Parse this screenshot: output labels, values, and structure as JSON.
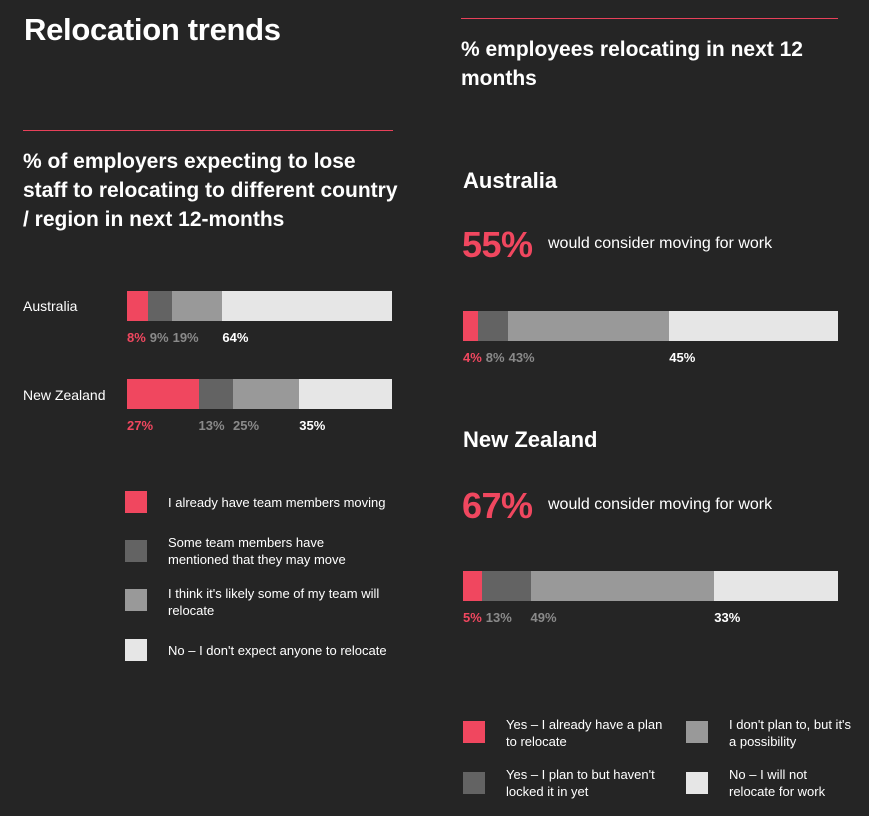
{
  "page": {
    "title": "Relocation trends"
  },
  "colors": {
    "background": "#252525",
    "accent": "#f0475f",
    "rule": "#e8415a",
    "dark_grey": "#636363",
    "mid_grey": "#999999",
    "light_grey": "#e6e6e6"
  },
  "chart_data": [
    {
      "type": "bar",
      "orientation": "horizontal-stacked",
      "title": "% of employers expecting to lose staff to relocating to different country / region in next 12-months",
      "categories": [
        "Australia",
        "New Zealand"
      ],
      "series": [
        {
          "name": "I already have team members moving",
          "color": "#f0475f",
          "values": [
            8,
            27
          ],
          "labels": [
            "8%",
            "27%"
          ]
        },
        {
          "name": "Some team members have mentioned that they may move",
          "color": "#636363",
          "values": [
            9,
            13
          ],
          "labels": [
            "9%",
            "13%"
          ]
        },
        {
          "name": "I think it's likely some of my team will relocate",
          "color": "#999999",
          "values": [
            19,
            25
          ],
          "labels": [
            "19%",
            "25%"
          ]
        },
        {
          "name": "No – I don't expect anyone to relocate",
          "color": "#e6e6e6",
          "values": [
            64,
            35
          ],
          "labels": [
            "64%",
            "35%"
          ]
        }
      ],
      "legend_position": "bottom"
    },
    {
      "type": "bar",
      "orientation": "horizontal-stacked",
      "title": "% employees relocating in next 12 months",
      "groups": [
        {
          "name": "Australia",
          "headline": "55%",
          "headline_text": "would consider moving for work"
        },
        {
          "name": "New Zealand",
          "headline": "67%",
          "headline_text": "would consider moving for work"
        }
      ],
      "categories": [
        "Australia",
        "New Zealand"
      ],
      "series": [
        {
          "name": "Yes – I already have a plan to relocate",
          "color": "#f0475f",
          "values": [
            4,
            5
          ],
          "labels": [
            "4%",
            "5%"
          ]
        },
        {
          "name": "Yes – I plan to but haven't locked it in yet",
          "color": "#636363",
          "values": [
            8,
            13
          ],
          "labels": [
            "8%",
            "13%"
          ]
        },
        {
          "name": "I don't plan to, but it's a possibility",
          "color": "#999999",
          "values": [
            43,
            49
          ],
          "labels": [
            "43%",
            "49%"
          ]
        },
        {
          "name": "No – I will not relocate for work",
          "color": "#e6e6e6",
          "values": [
            45,
            33
          ],
          "labels": [
            "45%",
            "33%"
          ]
        }
      ],
      "legend_position": "bottom"
    }
  ]
}
